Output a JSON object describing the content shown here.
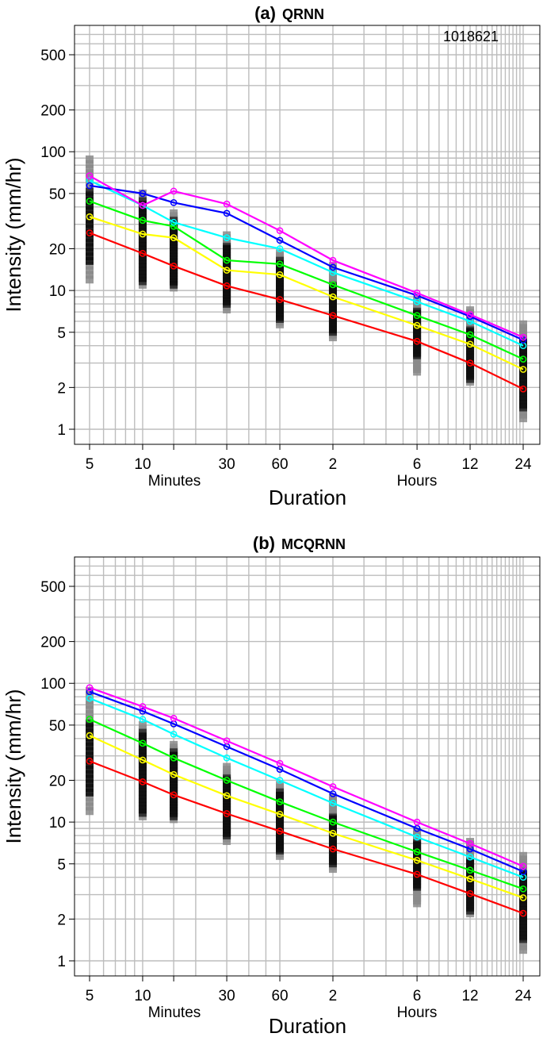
{
  "chart_data": [
    {
      "type": "line",
      "panel_label": "(a)",
      "title": "QRNN",
      "annotation": "1018621",
      "xlabel": "Duration",
      "ylabel": "Intensity (mm/hr)",
      "x_unit_labels": [
        "Minutes",
        "Hours"
      ],
      "x_tick_labels": [
        "5",
        "10",
        "30",
        "60",
        "2",
        "6",
        "12",
        "24"
      ],
      "y_tick_labels": [
        "1",
        "2",
        "5",
        "10",
        "20",
        "50",
        "100",
        "200",
        "500"
      ],
      "ylim": [
        0.8,
        700
      ],
      "x_minutes": [
        5,
        10,
        15,
        30,
        60,
        120,
        360,
        720,
        1440
      ],
      "series": [
        {
          "name": "quantile-1",
          "color": "#ff0000",
          "values": [
            26,
            18.5,
            15,
            10.8,
            8.6,
            6.6,
            4.3,
            3.0,
            1.95
          ]
        },
        {
          "name": "quantile-2",
          "color": "#ffff00",
          "values": [
            34,
            25.5,
            24,
            14,
            13,
            9,
            5.6,
            4.1,
            2.7
          ]
        },
        {
          "name": "quantile-3",
          "color": "#00ff00",
          "values": [
            44,
            32,
            29,
            16.5,
            15.5,
            11,
            6.6,
            4.8,
            3.2
          ]
        },
        {
          "name": "quantile-4",
          "color": "#00ffff",
          "values": [
            62,
            41,
            31,
            24,
            20,
            13.5,
            8.3,
            6.0,
            4.0
          ]
        },
        {
          "name": "quantile-5",
          "color": "#0000ff",
          "values": [
            57,
            50,
            43,
            36,
            23,
            14.7,
            9.2,
            6.5,
            4.4
          ]
        },
        {
          "name": "quantile-6",
          "color": "#ff00ff",
          "values": [
            67,
            41,
            52,
            42,
            27,
            16.5,
            9.6,
            6.7,
            4.6
          ]
        }
      ],
      "observations": [
        {
          "x_minutes": 5,
          "min": 12,
          "dense_min": 15.5,
          "dense_max": 55,
          "max": 88
        },
        {
          "x_minutes": 10,
          "min": 11,
          "dense_min": 11.5,
          "dense_max": 47,
          "max": 50
        },
        {
          "x_minutes": 15,
          "min": 10.5,
          "dense_min": 11,
          "dense_max": 34,
          "max": 36
        },
        {
          "x_minutes": 30,
          "min": 7.3,
          "dense_min": 7.8,
          "dense_max": 22,
          "max": 25
        },
        {
          "x_minutes": 60,
          "min": 5.7,
          "dense_min": 6.0,
          "dense_max": 17.5,
          "max": 18.5
        },
        {
          "x_minutes": 120,
          "min": 4.6,
          "dense_min": 4.9,
          "dense_max": 11.5,
          "max": 15
        },
        {
          "x_minutes": 360,
          "min": 2.6,
          "dense_min": 3.3,
          "dense_max": 7.5,
          "max": 8.5
        },
        {
          "x_minutes": 720,
          "min": 2.2,
          "dense_min": 2.3,
          "dense_max": 5.5,
          "max": 7.2
        },
        {
          "x_minutes": 1440,
          "min": 1.2,
          "dense_min": 1.4,
          "dense_max": 4.5,
          "max": 5.7
        }
      ]
    },
    {
      "type": "line",
      "panel_label": "(b)",
      "title": "MCQRNN",
      "xlabel": "Duration",
      "ylabel": "Intensity (mm/hr)",
      "x_unit_labels": [
        "Minutes",
        "Hours"
      ],
      "x_tick_labels": [
        "5",
        "10",
        "30",
        "60",
        "2",
        "6",
        "12",
        "24"
      ],
      "y_tick_labels": [
        "1",
        "2",
        "5",
        "10",
        "20",
        "50",
        "100",
        "200",
        "500"
      ],
      "ylim": [
        0.8,
        700
      ],
      "x_minutes": [
        5,
        10,
        15,
        30,
        60,
        120,
        360,
        720,
        1440
      ],
      "series": [
        {
          "name": "quantile-1",
          "color": "#ff0000",
          "values": [
            27.5,
            19.5,
            15.7,
            11.5,
            8.6,
            6.4,
            4.2,
            3.05,
            2.2
          ]
        },
        {
          "name": "quantile-2",
          "color": "#ffff00",
          "values": [
            42,
            28,
            22,
            15.5,
            11.4,
            8.3,
            5.3,
            3.9,
            2.85
          ]
        },
        {
          "name": "quantile-3",
          "color": "#00ff00",
          "values": [
            55,
            37,
            29,
            20,
            14,
            10,
            6.1,
            4.5,
            3.3
          ]
        },
        {
          "name": "quantile-4",
          "color": "#00ffff",
          "values": [
            78,
            55,
            43,
            29,
            20,
            13.7,
            7.8,
            5.6,
            4.0
          ]
        },
        {
          "name": "quantile-5",
          "color": "#0000ff",
          "values": [
            87,
            63,
            51,
            35,
            24,
            16,
            9.0,
            6.4,
            4.4
          ]
        },
        {
          "name": "quantile-6",
          "color": "#ff00ff",
          "values": [
            93,
            68,
            56,
            38.5,
            26.5,
            18,
            10,
            7.0,
            4.8
          ]
        }
      ],
      "observations": [
        {
          "x_minutes": 5,
          "min": 12,
          "dense_min": 15.5,
          "dense_max": 55,
          "max": 88
        },
        {
          "x_minutes": 10,
          "min": 11,
          "dense_min": 11.5,
          "dense_max": 47,
          "max": 50
        },
        {
          "x_minutes": 15,
          "min": 10.5,
          "dense_min": 11,
          "dense_max": 34,
          "max": 36
        },
        {
          "x_minutes": 30,
          "min": 7.3,
          "dense_min": 7.8,
          "dense_max": 22,
          "max": 25
        },
        {
          "x_minutes": 60,
          "min": 5.7,
          "dense_min": 6.0,
          "dense_max": 17.5,
          "max": 18.5
        },
        {
          "x_minutes": 120,
          "min": 4.6,
          "dense_min": 4.9,
          "dense_max": 11.5,
          "max": 15
        },
        {
          "x_minutes": 360,
          "min": 2.6,
          "dense_min": 3.3,
          "dense_max": 7.5,
          "max": 8.5
        },
        {
          "x_minutes": 720,
          "min": 2.2,
          "dense_min": 2.3,
          "dense_max": 5.5,
          "max": 7.2
        },
        {
          "x_minutes": 1440,
          "min": 1.2,
          "dense_min": 1.4,
          "dense_max": 4.5,
          "max": 5.7
        }
      ]
    }
  ]
}
